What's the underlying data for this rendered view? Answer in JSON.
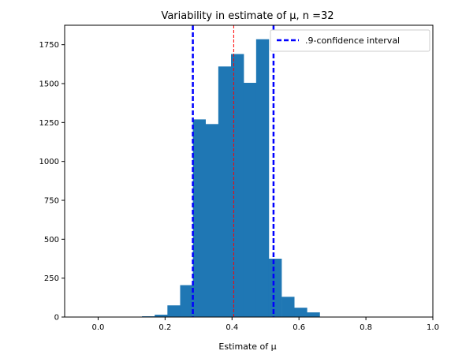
{
  "chart_data": {
    "type": "bar",
    "title": "Variability in estimate of μ, n =32",
    "xlabel": "Estimate of μ",
    "ylabel": "",
    "xlim": [
      -0.1,
      1.0
    ],
    "ylim": [
      0,
      1875
    ],
    "x_ticks": [
      0.0,
      0.2,
      0.4,
      0.6,
      0.8,
      1.0
    ],
    "x_tick_labels": [
      "0.0",
      "0.2",
      "0.4",
      "0.6",
      "0.8",
      "1.0"
    ],
    "y_ticks": [
      0,
      250,
      500,
      750,
      1000,
      1250,
      1500,
      1750
    ],
    "y_tick_labels": [
      "0",
      "250",
      "500",
      "750",
      "1000",
      "1250",
      "1500",
      "1750"
    ],
    "bin_width": 0.0379,
    "bins": [
      {
        "x0": 0.131,
        "value": 5
      },
      {
        "x0": 0.169,
        "value": 15
      },
      {
        "x0": 0.207,
        "value": 75
      },
      {
        "x0": 0.245,
        "value": 205
      },
      {
        "x0": 0.283,
        "value": 1270
      },
      {
        "x0": 0.321,
        "value": 1240
      },
      {
        "x0": 0.359,
        "value": 1610
      },
      {
        "x0": 0.397,
        "value": 1690
      },
      {
        "x0": 0.434,
        "value": 1505
      },
      {
        "x0": 0.472,
        "value": 1785
      },
      {
        "x0": 0.51,
        "value": 375
      },
      {
        "x0": 0.548,
        "value": 130
      },
      {
        "x0": 0.586,
        "value": 60
      },
      {
        "x0": 0.624,
        "value": 30
      }
    ],
    "bar_color": "#1f77b4",
    "confidence_interval": {
      "lower": 0.283,
      "upper": 0.524,
      "color": "#0000ff",
      "label": ".9-confidence interval"
    },
    "mean_line": {
      "x": 0.405,
      "color": "#ff0000"
    },
    "legend_position": "top-right",
    "grid": false
  }
}
